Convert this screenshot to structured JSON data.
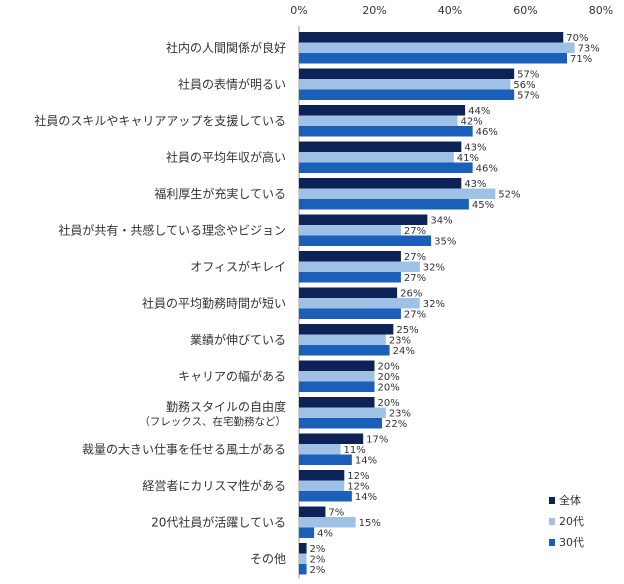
{
  "chart_data": {
    "type": "bar",
    "orientation": "horizontal",
    "categories": [
      "社内の人間関係が良好",
      "社員の表情が明るい",
      "社員のスキルやキャリアアップを支援している",
      "社員の平均年収が高い",
      "福利厚生が充実している",
      "社員が共有・共感している理念やビジョン",
      "オフィスがキレイ",
      "社員の平均勤務時間が短い",
      "業績が伸びている",
      "キャリアの幅がある",
      "勤務スタイルの自由度",
      "裁量の大きい仕事を任せる風土がある",
      "経営者にカリスマ性がある",
      "20代社員が活躍している",
      "その他"
    ],
    "category_sublabels": [
      "",
      "",
      "",
      "",
      "",
      "",
      "",
      "",
      "",
      "",
      "（フレックス、在宅勤務など）",
      "",
      "",
      "",
      ""
    ],
    "series": [
      {
        "name": "全体",
        "color": "#0d2257",
        "values": [
          70,
          57,
          44,
          43,
          43,
          34,
          27,
          26,
          25,
          20,
          20,
          17,
          12,
          7,
          2
        ]
      },
      {
        "name": "20代",
        "color": "#9fc1e6",
        "values": [
          73,
          56,
          42,
          41,
          52,
          27,
          32,
          32,
          23,
          20,
          23,
          11,
          12,
          15,
          2
        ]
      },
      {
        "name": "30代",
        "color": "#1c5fb8",
        "values": [
          71,
          57,
          46,
          46,
          45,
          35,
          27,
          27,
          24,
          20,
          22,
          14,
          14,
          4,
          2
        ]
      }
    ],
    "xlim": [
      0,
      80
    ],
    "xticks": [
      "0%",
      "20%",
      "40%",
      "60%",
      "80%"
    ],
    "value_suffix": "%",
    "legend_position": "bottom-right",
    "grid": false
  }
}
